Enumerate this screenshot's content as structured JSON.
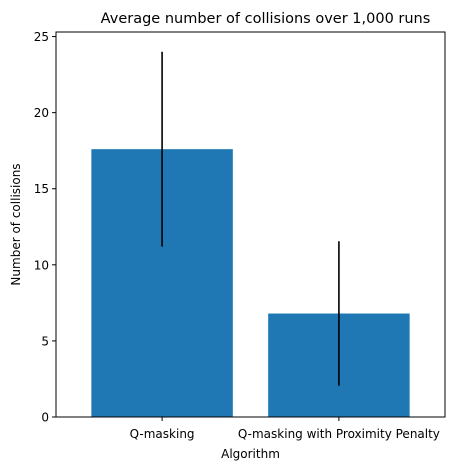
{
  "chart_data": {
    "type": "bar",
    "title": "Average number of collisions over 1,000 runs",
    "xlabel": "Algorithm",
    "ylabel": "Number of collisions",
    "categories": [
      "Q-masking",
      "Q-masking with Proximity Penalty"
    ],
    "values": [
      17.6,
      6.8
    ],
    "error": [
      6.4,
      4.75
    ],
    "ylim": [
      0,
      25.3
    ],
    "yticks": [
      0,
      5,
      10,
      15,
      20,
      25
    ],
    "bar_color": "#1f77b4",
    "error_color": "#000000",
    "grid": false,
    "legend": "none"
  }
}
